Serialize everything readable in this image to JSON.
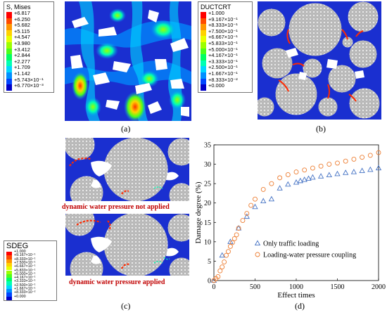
{
  "panel_a": {
    "label": "(a)",
    "legend_title": "S, Mises",
    "legend_values": [
      "+6.817",
      "+6.250",
      "+5.682",
      "+5.115",
      "+4.547",
      "+3.980",
      "+3.412",
      "+2.844",
      "+2.277",
      "+1.709",
      "+1.142",
      "+5.743×10⁻¹",
      "+6.770×10⁻³"
    ],
    "legend_colors": [
      "#ff0000",
      "#ff4a00",
      "#ff9600",
      "#ffd200",
      "#e8ff00",
      "#9cff00",
      "#4cff1a",
      "#00ff62",
      "#00ffb4",
      "#00d8ff",
      "#0090ff",
      "#0045ff",
      "#0000c8"
    ]
  },
  "panel_b": {
    "label": "(b)",
    "legend_title": "DUCTCRT",
    "legend_values": [
      "+1.000",
      "+9.167×10⁻¹",
      "+8.333×10⁻¹",
      "+7.500×10⁻¹",
      "+6.667×10⁻¹",
      "+5.833×10⁻¹",
      "+5.000×10⁻¹",
      "+4.167×10⁻¹",
      "+3.333×10⁻¹",
      "+2.500×10⁻¹",
      "+1.667×10⁻¹",
      "+8.333×10⁻²",
      "+0.000"
    ],
    "legend_colors": [
      "#ff0000",
      "#ff4a00",
      "#ff9600",
      "#ffd200",
      "#e8ff00",
      "#9cff00",
      "#4cff1a",
      "#00ff62",
      "#00ffb4",
      "#00d8ff",
      "#0090ff",
      "#0045ff",
      "#0000c8"
    ]
  },
  "panel_c": {
    "label": "(c)",
    "legend_title": "SDEG",
    "legend_values": [
      "+1.000",
      "+9.167×10⁻¹",
      "+8.333×10⁻¹",
      "+7.500×10⁻¹",
      "+6.667×10⁻¹",
      "+5.833×10⁻¹",
      "+5.000×10⁻¹",
      "+4.167×10⁻¹",
      "+3.333×10⁻¹",
      "+2.500×10⁻¹",
      "+1.667×10⁻¹",
      "+8.333×10⁻²",
      "+0.000"
    ],
    "legend_colors": [
      "#ff0000",
      "#ff4a00",
      "#ff9600",
      "#ffd200",
      "#e8ff00",
      "#9cff00",
      "#4cff1a",
      "#00ff62",
      "#00ffb4",
      "#00d8ff",
      "#0090ff",
      "#0045ff",
      "#0000c8"
    ],
    "caption_top": "dynamic water pressure not applied",
    "caption_bottom": "dynamic water pressure applied"
  },
  "panel_d": {
    "label": "(d)"
  },
  "chart_data": {
    "type": "scatter",
    "xlabel": "Effect times",
    "ylabel": "Damage degree (%)",
    "xlim": [
      0,
      2000
    ],
    "ylim": [
      0,
      35
    ],
    "xticks": [
      0,
      500,
      1000,
      1500,
      2000
    ],
    "yticks": [
      0,
      5,
      10,
      15,
      20,
      25,
      30,
      35
    ],
    "legend_position": "lower-right",
    "series": [
      {
        "name": "Only traffic loading",
        "marker": "triangle",
        "color": "#4472c4",
        "x": [
          0,
          100,
          200,
          300,
          400,
          500,
          600,
          700,
          800,
          900,
          1000,
          1050,
          1100,
          1150,
          1200,
          1300,
          1400,
          1500,
          1600,
          1700,
          1800,
          1900,
          2000
        ],
        "y": [
          0,
          6.5,
          10.0,
          13.5,
          16.5,
          19.0,
          20.5,
          21.0,
          23.8,
          24.8,
          25.3,
          25.7,
          26.0,
          26.3,
          26.6,
          26.9,
          27.2,
          27.5,
          27.8,
          28.0,
          28.3,
          28.6,
          29.0
        ]
      },
      {
        "name": "Loading-water pressure coupling",
        "marker": "circle",
        "color": "#ed7d31",
        "x": [
          0,
          25,
          50,
          75,
          100,
          125,
          150,
          175,
          200,
          225,
          250,
          275,
          300,
          350,
          400,
          450,
          500,
          600,
          700,
          800,
          900,
          1000,
          1100,
          1200,
          1300,
          1400,
          1500,
          1600,
          1700,
          1800,
          1900,
          2000
        ],
        "y": [
          0,
          0.5,
          1.0,
          2.5,
          3.5,
          4.8,
          6.5,
          7.5,
          8.8,
          9.8,
          10.8,
          11.8,
          13.5,
          15.5,
          17.3,
          19.4,
          21.0,
          23.5,
          25.0,
          26.5,
          27.3,
          28.0,
          28.5,
          29.0,
          29.5,
          30.0,
          30.3,
          30.8,
          31.3,
          31.8,
          32.3,
          33.0
        ]
      }
    ]
  }
}
